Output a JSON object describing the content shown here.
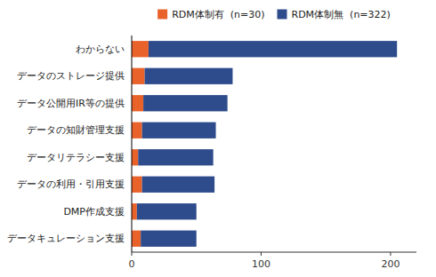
{
  "chart_data": {
    "type": "bar",
    "orientation": "horizontal",
    "stacked": true,
    "categories": [
      "わからない",
      "データのストレージ提供",
      "データ公開用IR等の提供",
      "データの知財管理支援",
      "データリテラシー支援",
      "データの利用・引用支援",
      "DMP作成支援",
      "データキュレーション支援"
    ],
    "series": [
      {
        "name": "RDM体制有  (n=30)",
        "color": "#E8622A",
        "values": [
          13,
          10,
          9,
          8,
          5,
          8,
          4,
          7
        ]
      },
      {
        "name": "RDM体制無  (n=322)",
        "color": "#2E4B8C",
        "values": [
          192,
          68,
          65,
          57,
          58,
          56,
          46,
          43
        ]
      }
    ],
    "xlim": [
      0,
      220
    ],
    "xticks": [
      0,
      100,
      200
    ],
    "grid": false,
    "legend": "top"
  }
}
